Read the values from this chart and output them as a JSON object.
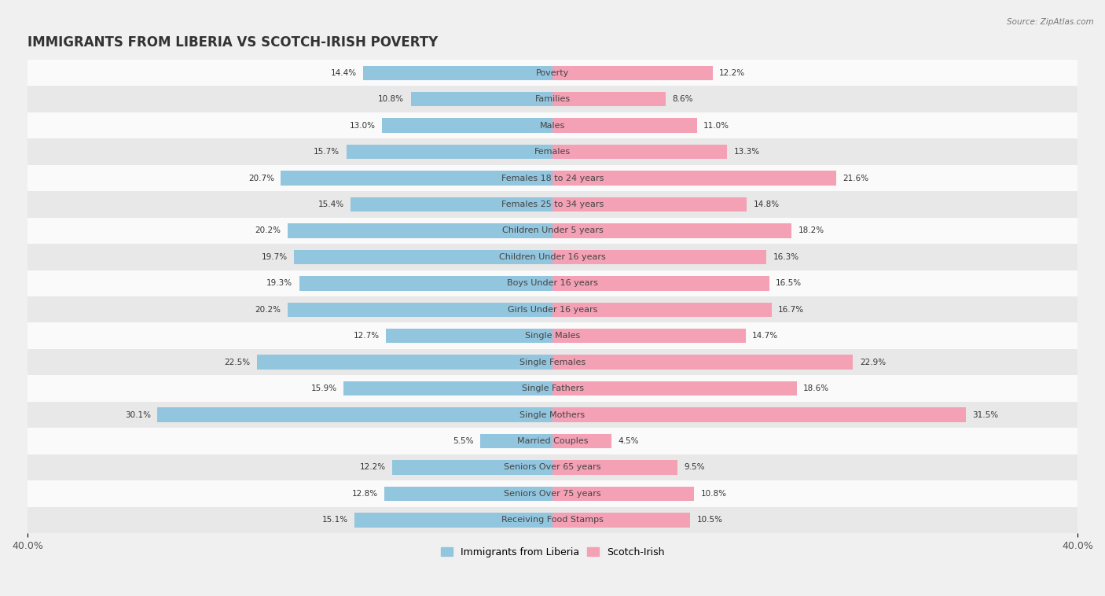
{
  "title": "IMMIGRANTS FROM LIBERIA VS SCOTCH-IRISH POVERTY",
  "source": "Source: ZipAtlas.com",
  "categories": [
    "Poverty",
    "Families",
    "Males",
    "Females",
    "Females 18 to 24 years",
    "Females 25 to 34 years",
    "Children Under 5 years",
    "Children Under 16 years",
    "Boys Under 16 years",
    "Girls Under 16 years",
    "Single Males",
    "Single Females",
    "Single Fathers",
    "Single Mothers",
    "Married Couples",
    "Seniors Over 65 years",
    "Seniors Over 75 years",
    "Receiving Food Stamps"
  ],
  "liberia_values": [
    14.4,
    10.8,
    13.0,
    15.7,
    20.7,
    15.4,
    20.2,
    19.7,
    19.3,
    20.2,
    12.7,
    22.5,
    15.9,
    30.1,
    5.5,
    12.2,
    12.8,
    15.1
  ],
  "scotch_irish_values": [
    12.2,
    8.6,
    11.0,
    13.3,
    21.6,
    14.8,
    18.2,
    16.3,
    16.5,
    16.7,
    14.7,
    22.9,
    18.6,
    31.5,
    4.5,
    9.5,
    10.8,
    10.5
  ],
  "liberia_color": "#92c5de",
  "scotch_irish_color": "#f4a0b5",
  "liberia_label": "Immigrants from Liberia",
  "scotch_irish_label": "Scotch-Irish",
  "xlim": 40.0,
  "bar_height": 0.55,
  "background_color": "#f0f0f0",
  "row_color_light": "#fafafa",
  "row_color_dark": "#e8e8e8",
  "title_fontsize": 12,
  "label_fontsize": 8,
  "value_fontsize": 7.5,
  "axis_label_fontsize": 9
}
